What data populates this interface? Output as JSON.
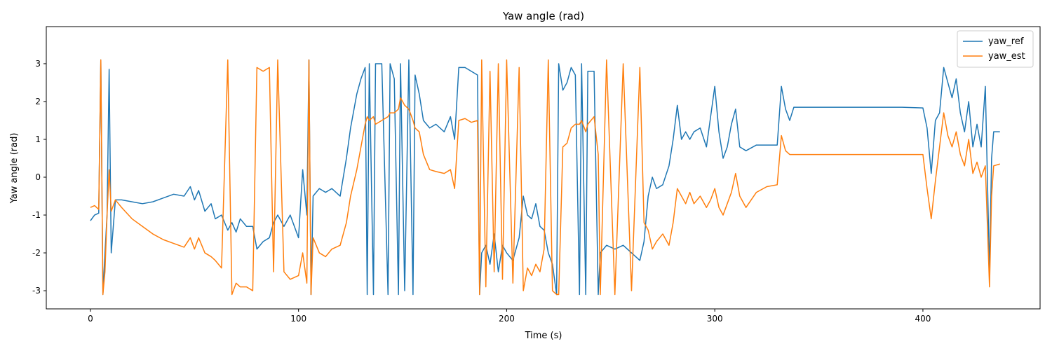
{
  "chart_data": {
    "type": "line",
    "title": "Yaw angle (rad)",
    "xlabel": "Time (s)",
    "ylabel": "Yaw angle (rad)",
    "x": [
      0,
      2,
      4,
      5,
      6,
      7,
      8,
      9,
      10,
      12,
      15,
      20,
      25,
      30,
      35,
      40,
      45,
      48,
      50,
      52,
      55,
      58,
      60,
      63,
      66,
      68,
      70,
      72,
      75,
      78,
      80,
      83,
      86,
      88,
      90,
      93,
      96,
      100,
      102,
      104,
      105,
      106,
      107,
      110,
      113,
      116,
      120,
      123,
      125,
      128,
      130,
      132,
      133,
      134,
      136,
      137,
      140,
      143,
      144,
      146,
      148,
      149,
      151,
      153,
      155,
      156,
      158,
      160,
      163,
      166,
      170,
      173,
      175,
      177,
      180,
      183,
      186,
      187,
      188,
      190,
      192,
      194,
      196,
      198,
      200,
      203,
      206,
      208,
      210,
      212,
      214,
      216,
      218,
      220,
      222,
      224,
      225,
      227,
      229,
      231,
      233,
      235,
      236,
      238,
      239,
      242,
      244,
      245,
      248,
      252,
      256,
      260,
      264,
      266,
      268,
      270,
      272,
      275,
      278,
      280,
      282,
      284,
      286,
      288,
      290,
      293,
      296,
      298,
      300,
      302,
      304,
      306,
      308,
      310,
      312,
      315,
      320,
      325,
      330,
      332,
      334,
      336,
      338,
      350,
      370,
      390,
      400,
      402,
      404,
      406,
      408,
      410,
      412,
      414,
      416,
      418,
      420,
      422,
      424,
      426,
      428,
      430,
      432,
      433,
      434,
      437
    ],
    "series": [
      {
        "name": "yaw_ref",
        "color": "#1f77b4",
        "values": [
          -1.15,
          -1.0,
          -0.95,
          3.1,
          -3.1,
          -2.0,
          -1.0,
          2.85,
          -2.0,
          -0.6,
          -0.6,
          -0.65,
          -0.7,
          -0.65,
          -0.55,
          -0.45,
          -0.5,
          -0.25,
          -0.6,
          -0.35,
          -0.9,
          -0.7,
          -1.1,
          -1.0,
          -1.4,
          -1.2,
          -1.45,
          -1.1,
          -1.3,
          -1.3,
          -1.9,
          -1.7,
          -1.6,
          -1.2,
          -1.0,
          -1.3,
          -1.0,
          -1.6,
          0.2,
          -1.0,
          3.1,
          -3.1,
          -0.5,
          -0.3,
          -0.4,
          -0.3,
          -0.5,
          0.5,
          1.3,
          2.2,
          2.6,
          2.9,
          -3.1,
          3.0,
          -3.1,
          3.0,
          3.0,
          -3.1,
          3.0,
          2.6,
          -3.1,
          3.0,
          -3.0,
          3.1,
          -3.1,
          2.7,
          2.2,
          1.5,
          1.3,
          1.4,
          1.2,
          1.6,
          1.0,
          2.9,
          2.9,
          2.8,
          2.7,
          -3.1,
          -2.0,
          -1.8,
          -2.3,
          -1.5,
          -2.5,
          -1.8,
          -2.0,
          -2.2,
          -1.6,
          -0.5,
          -1.0,
          -1.1,
          -0.7,
          -1.3,
          -1.4,
          -2.0,
          -2.3,
          -3.1,
          3.0,
          2.3,
          2.5,
          2.9,
          2.7,
          -3.1,
          3.0,
          -3.1,
          2.8,
          2.8,
          -3.1,
          -2.0,
          -1.8,
          -1.9,
          -1.8,
          -2.0,
          -2.2,
          -1.7,
          -0.5,
          0.0,
          -0.3,
          -0.2,
          0.3,
          1.0,
          1.9,
          1.0,
          1.2,
          1.0,
          1.2,
          1.3,
          0.8,
          1.6,
          2.4,
          1.2,
          0.5,
          0.8,
          1.4,
          1.8,
          0.8,
          0.7,
          0.85,
          0.85,
          0.85,
          2.4,
          1.8,
          1.5,
          1.85,
          1.85,
          1.85,
          1.85,
          1.83,
          1.3,
          0.1,
          1.5,
          1.7,
          2.9,
          2.5,
          2.1,
          2.6,
          1.7,
          1.2,
          2.0,
          0.8,
          1.4,
          0.8,
          2.4,
          -2.5,
          0.5,
          1.2,
          1.2
        ]
      },
      {
        "name": "yaw_est",
        "color": "#ff7f0e",
        "values": [
          -0.8,
          -0.75,
          -0.85,
          3.1,
          -3.1,
          -2.5,
          -1.0,
          0.2,
          -0.9,
          -0.6,
          -0.8,
          -1.1,
          -1.3,
          -1.5,
          -1.65,
          -1.75,
          -1.85,
          -1.6,
          -1.9,
          -1.6,
          -2.0,
          -2.1,
          -2.2,
          -2.4,
          3.1,
          -3.1,
          -2.8,
          -2.9,
          -2.9,
          -3.0,
          2.9,
          2.8,
          2.9,
          -2.5,
          3.1,
          -2.5,
          -2.7,
          -2.6,
          -2.0,
          -2.8,
          3.1,
          -3.1,
          -1.6,
          -2.0,
          -2.1,
          -1.9,
          -1.8,
          -1.2,
          -0.5,
          0.2,
          0.8,
          1.4,
          1.6,
          1.5,
          1.6,
          1.4,
          1.5,
          1.6,
          1.7,
          1.7,
          1.8,
          2.1,
          1.9,
          1.8,
          1.5,
          1.3,
          1.2,
          0.6,
          0.2,
          0.15,
          0.1,
          0.2,
          -0.3,
          1.5,
          1.55,
          1.45,
          1.5,
          -3.1,
          3.1,
          -2.9,
          2.8,
          -2.5,
          3.0,
          -2.7,
          3.1,
          -2.8,
          2.9,
          -3.0,
          -2.4,
          -2.6,
          -2.3,
          -2.5,
          -1.9,
          3.1,
          -3.0,
          -3.1,
          -3.1,
          0.8,
          0.9,
          1.3,
          1.4,
          1.4,
          1.5,
          1.2,
          1.4,
          1.6,
          0.6,
          -3.1,
          3.1,
          -3.1,
          3.0,
          -3.0,
          2.9,
          -1.2,
          -1.4,
          -1.9,
          -1.7,
          -1.5,
          -1.8,
          -1.2,
          -0.3,
          -0.5,
          -0.7,
          -0.4,
          -0.7,
          -0.5,
          -0.8,
          -0.6,
          -0.3,
          -0.8,
          -1.0,
          -0.7,
          -0.4,
          0.1,
          -0.5,
          -0.8,
          -0.4,
          -0.25,
          -0.2,
          1.1,
          0.7,
          0.6,
          0.6,
          0.6,
          0.6,
          0.6,
          0.6,
          -0.3,
          -1.1,
          -0.1,
          0.8,
          1.7,
          1.1,
          0.8,
          1.2,
          0.6,
          0.3,
          1.0,
          0.1,
          0.4,
          0.0,
          0.3,
          -2.9,
          -0.5,
          0.3,
          0.35
        ]
      }
    ],
    "xlim": [
      -21.2,
      456.3
    ],
    "ylim": [
      -3.48,
      3.98
    ],
    "xticks": [
      0,
      100,
      200,
      300,
      400
    ],
    "yticks": [
      -3,
      -2,
      -1,
      0,
      1,
      2,
      3
    ],
    "grid": false,
    "legend": "upper right"
  }
}
